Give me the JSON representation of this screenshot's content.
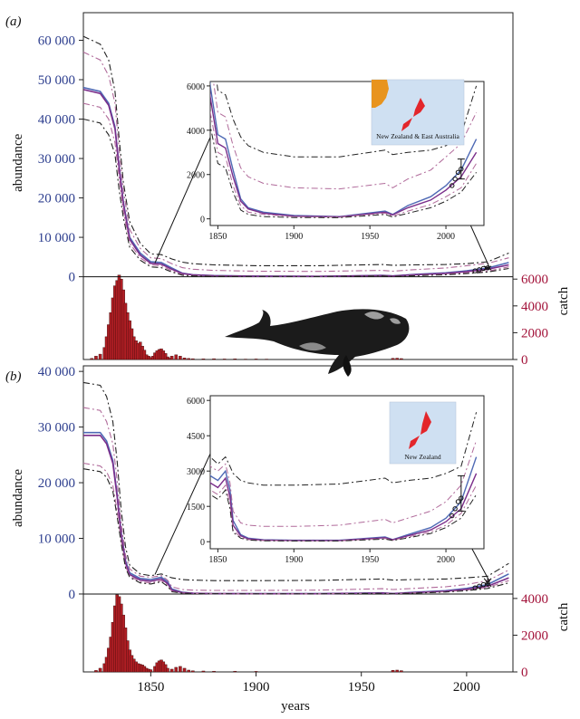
{
  "figure": {
    "x_axis_label": "years",
    "whale_description": "right-whale-illustration"
  },
  "chart_data": [
    {
      "id": "a",
      "panel_label": "(a)",
      "type": "line",
      "title": "",
      "xlabel": "years",
      "ylabel": "abundance",
      "ylabel_right": "catch",
      "xlim": [
        1818,
        2022
      ],
      "ylim": [
        -21000,
        67000
      ],
      "y_ticks": [
        0,
        10000,
        20000,
        30000,
        40000,
        50000,
        60000
      ],
      "y_tick_labels": [
        "0",
        "10 000",
        "20 000",
        "30 000",
        "40 000",
        "50 000",
        "60 000"
      ],
      "catch_ticks": [
        0,
        2000,
        4000,
        6000
      ],
      "catch_tick_labels": [
        "0",
        "2000",
        "4000",
        "6000"
      ],
      "catch_baseline_value": -21000,
      "catch_scale": 3.4,
      "colors": {
        "axis_left": "#2e3f8f",
        "axis_right": "#a3133a",
        "bars": "#b01e24",
        "blue_line": "#4f6ab5",
        "purple_line": "#7a2d8a",
        "pink_dash": "#b06a9a",
        "black_dash": "#222222"
      },
      "series": [
        {
          "name": "median-blue",
          "style": "solid",
          "color": "#4f6ab5",
          "x": [
            1818,
            1826,
            1830,
            1833,
            1835,
            1837,
            1840,
            1845,
            1850,
            1855,
            1860,
            1865,
            1870,
            1880,
            1900,
            1930,
            1960,
            1965,
            1975,
            1990,
            2000,
            2010,
            2020
          ],
          "y": [
            48000,
            47000,
            44000,
            38000,
            28000,
            19000,
            10000,
            6000,
            3800,
            3600,
            2200,
            900,
            500,
            300,
            150,
            100,
            350,
            200,
            600,
            1000,
            1500,
            2200,
            3600
          ]
        },
        {
          "name": "median-purple",
          "style": "solid",
          "color": "#7a2d8a",
          "x": [
            1818,
            1826,
            1830,
            1833,
            1835,
            1837,
            1840,
            1845,
            1850,
            1855,
            1860,
            1865,
            1870,
            1880,
            1900,
            1930,
            1960,
            1965,
            1975,
            1990,
            2000,
            2010,
            2020
          ],
          "y": [
            47500,
            46500,
            43500,
            37500,
            27500,
            18500,
            9500,
            5500,
            3400,
            3200,
            1900,
            800,
            450,
            250,
            120,
            90,
            300,
            180,
            500,
            850,
            1300,
            1900,
            3000
          ]
        },
        {
          "name": "upper-black",
          "style": "dashdot",
          "color": "#222222",
          "x": [
            1818,
            1826,
            1830,
            1833,
            1835,
            1837,
            1840,
            1845,
            1850,
            1855,
            1860,
            1865,
            1870,
            1880,
            1900,
            1930,
            1960,
            1965,
            1975,
            1990,
            2000,
            2010,
            2020
          ],
          "y": [
            61000,
            59000,
            55000,
            47000,
            35000,
            24000,
            14000,
            8500,
            5800,
            5600,
            4500,
            3700,
            3300,
            3000,
            2800,
            2800,
            3100,
            2900,
            3000,
            3100,
            3300,
            3800,
            6000
          ]
        },
        {
          "name": "upper-pink",
          "style": "dashdot",
          "color": "#b06a9a",
          "x": [
            1818,
            1826,
            1830,
            1833,
            1835,
            1837,
            1840,
            1845,
            1850,
            1855,
            1860,
            1865,
            1870,
            1880,
            1900,
            1930,
            1960,
            1965,
            1975,
            1990,
            2000,
            2010,
            2020
          ],
          "y": [
            57000,
            55000,
            51000,
            44000,
            32000,
            22000,
            12000,
            7200,
            4800,
            4600,
            3300,
            2300,
            1900,
            1600,
            1400,
            1350,
            1600,
            1400,
            1800,
            2200,
            2800,
            3400,
            4800
          ]
        },
        {
          "name": "lower-pink",
          "style": "dashdot",
          "color": "#b06a9a",
          "x": [
            1818,
            1826,
            1830,
            1833,
            1835,
            1837,
            1840,
            1845,
            1850,
            1855,
            1860,
            1865,
            1870,
            1880,
            1900,
            1930,
            1960,
            1965,
            1975,
            1990,
            2000,
            2010,
            2020
          ],
          "y": [
            44000,
            43000,
            40000,
            34000,
            25000,
            16500,
            8500,
            4800,
            3000,
            2800,
            1500,
            600,
            300,
            200,
            100,
            80,
            250,
            120,
            350,
            650,
            1000,
            1400,
            2500
          ]
        },
        {
          "name": "lower-black",
          "style": "dashdot",
          "color": "#222222",
          "x": [
            1818,
            1826,
            1830,
            1833,
            1835,
            1837,
            1840,
            1845,
            1850,
            1855,
            1860,
            1865,
            1870,
            1880,
            1900,
            1930,
            1960,
            1965,
            1975,
            1990,
            2000,
            2010,
            2020
          ],
          "y": [
            40000,
            39000,
            36000,
            31000,
            22000,
            15000,
            7500,
            4200,
            2500,
            2300,
            1200,
            400,
            200,
            100,
            60,
            50,
            200,
            80,
            250,
            500,
            800,
            1200,
            2100
          ]
        }
      ],
      "catch_bars": {
        "x": [
          1822,
          1824,
          1826,
          1828,
          1829,
          1830,
          1831,
          1832,
          1833,
          1834,
          1835,
          1836,
          1837,
          1838,
          1839,
          1840,
          1841,
          1842,
          1843,
          1844,
          1845,
          1846,
          1847,
          1848,
          1849,
          1850,
          1851,
          1852,
          1853,
          1854,
          1855,
          1856,
          1857,
          1858,
          1859,
          1860,
          1862,
          1864,
          1866,
          1868,
          1870,
          1875,
          1880,
          1885,
          1890,
          1895,
          1900,
          1905,
          1965,
          1967,
          1969
        ],
        "values": [
          80,
          250,
          400,
          900,
          1700,
          2600,
          3500,
          4600,
          5500,
          5900,
          6300,
          6000,
          5200,
          4200,
          3500,
          2900,
          2300,
          1700,
          1400,
          1200,
          1300,
          1000,
          700,
          350,
          250,
          150,
          250,
          500,
          650,
          750,
          800,
          650,
          450,
          200,
          100,
          250,
          350,
          250,
          120,
          80,
          60,
          50,
          60,
          40,
          50,
          30,
          40,
          30,
          90,
          100,
          70
        ]
      },
      "observations": {
        "x": [
          2004,
          2006,
          2008,
          2010
        ],
        "y": [
          1500,
          1800,
          2100,
          2250
        ],
        "errorbar": {
          "x": 2010,
          "y": 2250,
          "low": 1800,
          "high": 2700
        }
      },
      "inset": {
        "xlim": [
          1845,
          2025
        ],
        "ylim": [
          -300,
          6200
        ],
        "x_ticks": [
          1850,
          1900,
          1950,
          2000
        ],
        "x_tick_labels": [
          "1850",
          "1900",
          "1950",
          "2000"
        ],
        "y_ticks": [
          0,
          2000,
          4000,
          6000
        ],
        "y_tick_labels": [
          "0",
          "2000",
          "4000",
          "6000"
        ],
        "map_label": "New Zealand & East Australia",
        "map_colors": {
          "sea": "#cfe0f2",
          "australia": "#e8941e",
          "new_zealand": "#e3262b"
        },
        "show_australia": true
      }
    },
    {
      "id": "b",
      "panel_label": "(b)",
      "type": "line",
      "title": "",
      "xlabel": "years",
      "ylabel": "abundance",
      "ylabel_right": "catch",
      "xlim": [
        1818,
        2022
      ],
      "ylim": [
        -14000,
        41000
      ],
      "y_ticks": [
        0,
        10000,
        20000,
        30000,
        40000
      ],
      "y_tick_labels": [
        "0",
        "10 000",
        "20 000",
        "30 000",
        "40 000"
      ],
      "catch_ticks": [
        0,
        2000,
        4000
      ],
      "catch_tick_labels": [
        "0",
        "2000",
        "4000"
      ],
      "catch_baseline_value": -14000,
      "catch_scale": 3.3,
      "colors": {
        "axis_left": "#2e3f8f",
        "axis_right": "#a3133a",
        "bars": "#b01e24",
        "blue_line": "#4f6ab5",
        "purple_line": "#7a2d8a",
        "pink_dash": "#b06a9a",
        "black_dash": "#222222"
      },
      "series": [
        {
          "name": "median-blue",
          "style": "solid",
          "color": "#4f6ab5",
          "x": [
            1818,
            1826,
            1829,
            1832,
            1834,
            1836,
            1838,
            1840,
            1845,
            1850,
            1855,
            1858,
            1860,
            1865,
            1870,
            1880,
            1900,
            1930,
            1960,
            1965,
            1975,
            1990,
            2000,
            2010,
            2020
          ],
          "y": [
            29000,
            29000,
            27500,
            24000,
            18000,
            11000,
            6000,
            3800,
            2800,
            2600,
            3000,
            2200,
            900,
            300,
            150,
            80,
            60,
            60,
            200,
            90,
            300,
            600,
            1000,
            1700,
            3600
          ]
        },
        {
          "name": "median-purple",
          "style": "solid",
          "color": "#7a2d8a",
          "x": [
            1818,
            1826,
            1829,
            1832,
            1834,
            1836,
            1838,
            1840,
            1845,
            1850,
            1855,
            1858,
            1860,
            1865,
            1870,
            1880,
            1900,
            1930,
            1960,
            1965,
            1975,
            1990,
            2000,
            2010,
            2020
          ],
          "y": [
            28500,
            28500,
            27000,
            23500,
            17500,
            10500,
            5600,
            3500,
            2500,
            2300,
            2700,
            1900,
            700,
            250,
            120,
            70,
            50,
            50,
            170,
            80,
            250,
            500,
            850,
            1400,
            2900
          ]
        },
        {
          "name": "upper-black",
          "style": "dashdot",
          "color": "#222222",
          "x": [
            1818,
            1826,
            1829,
            1832,
            1834,
            1836,
            1838,
            1840,
            1845,
            1850,
            1855,
            1858,
            1860,
            1865,
            1870,
            1880,
            1900,
            1930,
            1960,
            1965,
            1975,
            1990,
            2000,
            2010,
            2020
          ],
          "y": [
            38000,
            37500,
            35500,
            31000,
            24000,
            15000,
            8500,
            5200,
            3600,
            3300,
            3600,
            3200,
            2900,
            2600,
            2500,
            2400,
            2400,
            2450,
            2700,
            2500,
            2600,
            2700,
            2900,
            3200,
            5500
          ]
        },
        {
          "name": "upper-pink",
          "style": "dashdot",
          "color": "#b06a9a",
          "x": [
            1818,
            1826,
            1829,
            1832,
            1834,
            1836,
            1838,
            1840,
            1845,
            1850,
            1855,
            1858,
            1860,
            1865,
            1870,
            1880,
            1900,
            1930,
            1960,
            1965,
            1975,
            1990,
            2000,
            2010,
            2020
          ],
          "y": [
            33500,
            33000,
            31000,
            27000,
            20500,
            12500,
            7000,
            4500,
            3200,
            3000,
            3300,
            2500,
            1300,
            800,
            700,
            650,
            650,
            700,
            950,
            800,
            1000,
            1300,
            1700,
            2400,
            4300
          ]
        },
        {
          "name": "lower-pink",
          "style": "dashdot",
          "color": "#b06a9a",
          "x": [
            1818,
            1826,
            1829,
            1832,
            1834,
            1836,
            1838,
            1840,
            1845,
            1850,
            1855,
            1858,
            1860,
            1865,
            1870,
            1880,
            1900,
            1930,
            1960,
            1965,
            1975,
            1990,
            2000,
            2010,
            2020
          ],
          "y": [
            23500,
            23000,
            22000,
            19500,
            15000,
            9500,
            5000,
            3200,
            2200,
            2000,
            2400,
            1600,
            500,
            180,
            90,
            50,
            40,
            40,
            140,
            70,
            200,
            420,
            700,
            1200,
            2400
          ]
        },
        {
          "name": "lower-black",
          "style": "dashdot",
          "color": "#222222",
          "x": [
            1818,
            1826,
            1829,
            1832,
            1834,
            1836,
            1838,
            1840,
            1845,
            1850,
            1855,
            1858,
            1860,
            1865,
            1870,
            1880,
            1900,
            1930,
            1960,
            1965,
            1975,
            1990,
            2000,
            2010,
            2020
          ],
          "y": [
            22500,
            22000,
            21000,
            18500,
            14000,
            9000,
            4700,
            3000,
            2000,
            1800,
            2200,
            1400,
            400,
            150,
            70,
            40,
            30,
            30,
            110,
            50,
            160,
            350,
            600,
            1000,
            2000
          ]
        }
      ],
      "catch_bars": {
        "x": [
          1824,
          1826,
          1828,
          1829,
          1830,
          1831,
          1832,
          1833,
          1834,
          1835,
          1836,
          1837,
          1838,
          1839,
          1840,
          1841,
          1842,
          1843,
          1844,
          1845,
          1846,
          1847,
          1848,
          1849,
          1850,
          1852,
          1853,
          1854,
          1855,
          1856,
          1857,
          1858,
          1860,
          1862,
          1864,
          1866,
          1868,
          1870,
          1875,
          1880,
          1890,
          1900,
          1965,
          1967,
          1969
        ],
        "values": [
          80,
          200,
          450,
          800,
          1300,
          1900,
          2700,
          3600,
          4200,
          4100,
          3700,
          3100,
          2400,
          1700,
          1200,
          900,
          700,
          550,
          450,
          420,
          380,
          300,
          200,
          150,
          120,
          300,
          500,
          600,
          650,
          550,
          400,
          200,
          150,
          250,
          300,
          200,
          100,
          60,
          50,
          40,
          40,
          30,
          90,
          100,
          70
        ]
      },
      "observations": {
        "x": [
          2004,
          2006,
          2008,
          2010
        ],
        "y": [
          1100,
          1400,
          1700,
          1850
        ],
        "errorbar": {
          "x": 2010,
          "y": 1850,
          "low": 1300,
          "high": 2800
        }
      },
      "inset": {
        "xlim": [
          1845,
          2025
        ],
        "ylim": [
          -300,
          6200
        ],
        "x_ticks": [
          1850,
          1900,
          1950,
          2000
        ],
        "x_tick_labels": [
          "1850",
          "1900",
          "1950",
          "2000"
        ],
        "y_ticks": [
          0,
          1500,
          3000,
          4500,
          6000
        ],
        "y_tick_labels": [
          "0",
          "1500",
          "3000",
          "4500",
          "6000"
        ],
        "map_label": "New Zealand",
        "map_colors": {
          "sea": "#cfe0f2",
          "australia": "#e8941e",
          "new_zealand": "#e3262b"
        },
        "show_australia": false
      }
    }
  ]
}
